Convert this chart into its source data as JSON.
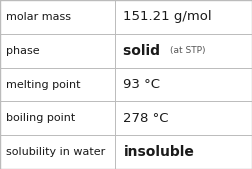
{
  "rows": [
    {
      "label": "molar mass",
      "value": "151.21 g/mol",
      "value_bold": false,
      "sub_text": null,
      "value_size": 9.5
    },
    {
      "label": "phase",
      "value": "solid",
      "value_bold": true,
      "sub_text": "(at STP)",
      "value_size": 10
    },
    {
      "label": "melting point",
      "value": "93 °C",
      "value_bold": false,
      "sub_text": null,
      "value_size": 9.5
    },
    {
      "label": "boiling point",
      "value": "278 °C",
      "value_bold": false,
      "sub_text": null,
      "value_size": 9.5
    },
    {
      "label": "solubility in water",
      "value": "insoluble",
      "value_bold": true,
      "sub_text": null,
      "value_size": 10
    }
  ],
  "col_split": 0.455,
  "background": "#ffffff",
  "border_color": "#bbbbbb",
  "label_fontsize": 8.0,
  "sub_fontsize": 6.5,
  "text_color": "#1a1a1a",
  "sub_color": "#555555"
}
